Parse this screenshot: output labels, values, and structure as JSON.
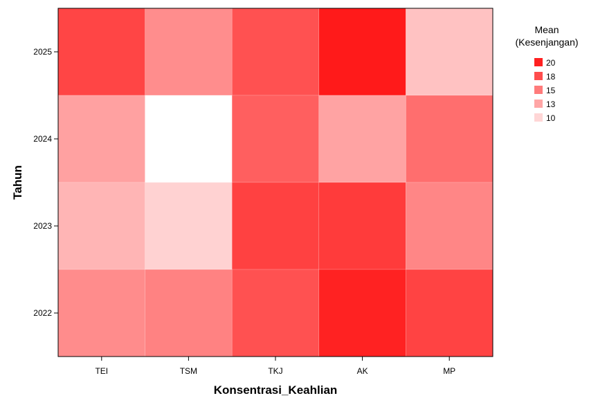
{
  "chart_data": {
    "type": "heatmap",
    "xlabel": "Konsentrasi_Keahlian",
    "ylabel": "Tahun",
    "categories_x": [
      "TEI",
      "TSM",
      "TKJ",
      "AK",
      "MP"
    ],
    "categories_y": [
      "2025",
      "2024",
      "2023",
      "2022"
    ],
    "values": [
      [
        17.9,
        14.2,
        17.3,
        20.1,
        11.5
      ],
      [
        13.2,
        8.4,
        16.6,
        13.1,
        15.8
      ],
      [
        12.2,
        10.7,
        18.1,
        18.4,
        14.6
      ],
      [
        14.3,
        14.8,
        17.3,
        19.7,
        18.0
      ]
    ],
    "legend": {
      "title_line1": "Mean",
      "title_line2": "(Kesenjangan)",
      "placement": "right",
      "entries": [
        {
          "label": "20",
          "color": "#ff2020"
        },
        {
          "label": "18",
          "color": "#ff4d4d"
        },
        {
          "label": "15",
          "color": "#ff7b7b"
        },
        {
          "label": "13",
          "color": "#ffa6a6"
        },
        {
          "label": "10",
          "color": "#ffd6d6"
        }
      ]
    },
    "color_scale": {
      "min_value": 8.4,
      "max_value": 20.1,
      "low_color": "#ffffff",
      "high_color": "#ff1a1a"
    },
    "grid": false
  }
}
